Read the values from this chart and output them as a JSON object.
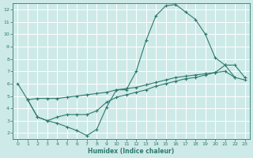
{
  "line1_x": [
    0,
    1,
    2,
    3,
    4,
    5,
    6,
    7,
    8,
    9,
    10,
    11,
    12,
    13,
    14,
    15,
    16,
    17,
    18,
    19,
    20,
    21,
    22
  ],
  "line1_y": [
    6.0,
    4.7,
    3.3,
    3.0,
    2.8,
    2.5,
    2.2,
    1.8,
    2.3,
    4.1,
    5.5,
    5.5,
    7.0,
    9.5,
    11.5,
    12.3,
    12.4,
    11.8,
    11.2,
    10.0,
    8.1,
    7.5,
    6.5
  ],
  "line2_x": [
    1,
    2,
    3,
    4,
    5,
    6,
    7,
    8,
    9,
    10,
    11,
    12,
    13,
    14,
    15,
    16,
    17,
    18,
    19,
    20,
    21,
    22,
    23
  ],
  "line2_y": [
    4.7,
    4.8,
    4.8,
    4.8,
    4.9,
    5.0,
    5.1,
    5.2,
    5.3,
    5.5,
    5.6,
    5.7,
    5.9,
    6.1,
    6.3,
    6.5,
    6.6,
    6.7,
    6.8,
    6.9,
    7.5,
    7.5,
    6.5
  ],
  "line3_x": [
    1,
    2,
    3,
    4,
    5,
    6,
    7,
    8,
    9,
    10,
    11,
    12,
    13,
    14,
    15,
    16,
    17,
    18,
    19,
    20,
    21,
    22,
    23
  ],
  "line3_y": [
    4.7,
    3.3,
    3.0,
    3.3,
    3.5,
    3.5,
    3.5,
    3.8,
    4.5,
    4.9,
    5.1,
    5.3,
    5.5,
    5.8,
    6.0,
    6.2,
    6.4,
    6.5,
    6.7,
    6.9,
    7.0,
    6.5,
    6.3
  ],
  "line_color": "#2d7a6e",
  "bg_color": "#ceeae8",
  "grid_major_color": "#ffffff",
  "grid_minor_color": "#ddf0ee",
  "xlabel": "Humidex (Indice chaleur)",
  "xlim": [
    -0.5,
    23.5
  ],
  "ylim": [
    1.5,
    12.5
  ],
  "yticks": [
    2,
    3,
    4,
    5,
    6,
    7,
    8,
    9,
    10,
    11,
    12
  ],
  "xticks": [
    0,
    1,
    2,
    3,
    4,
    5,
    6,
    7,
    8,
    9,
    10,
    11,
    12,
    13,
    14,
    15,
    16,
    17,
    18,
    19,
    20,
    21,
    22,
    23
  ]
}
